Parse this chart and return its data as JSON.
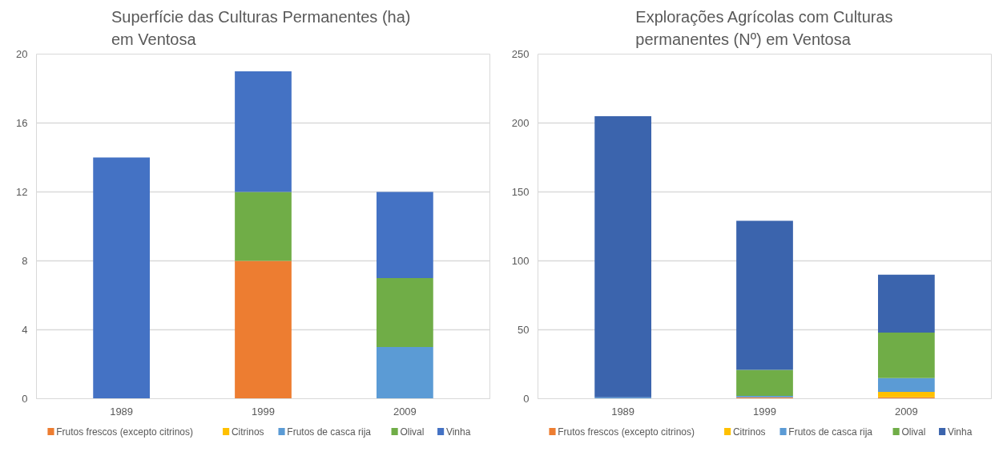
{
  "chart_data": [
    {
      "type": "bar",
      "title": "Superfície  das Culturas Permanentes (ha)\nem Ventosa",
      "categories": [
        "1989",
        "1999",
        "2009"
      ],
      "stacked": true,
      "ylim": [
        0,
        20
      ],
      "yticks": [
        0,
        4,
        8,
        12,
        16,
        20
      ],
      "grid": "y",
      "legend": "bottom",
      "series": [
        {
          "name": "Frutos frescos (excepto citrinos)",
          "color": "#ed7d31",
          "values": [
            0,
            8,
            0
          ]
        },
        {
          "name": "Citrinos",
          "color": "#ffc000",
          "values": [
            0,
            0,
            0
          ]
        },
        {
          "name": "Frutos de casca rija",
          "color": "#5b9bd5",
          "values": [
            0,
            0,
            3
          ]
        },
        {
          "name": "Olival",
          "color": "#70ad47",
          "values": [
            0,
            4,
            4
          ]
        },
        {
          "name": "Vinha",
          "color": "#4472c4",
          "values": [
            14,
            7,
            5
          ]
        }
      ]
    },
    {
      "type": "bar",
      "title": "Explorações Agrícolas com Culturas\npermanentes (Nº) em Ventosa",
      "categories": [
        "1989",
        "1999",
        "2009"
      ],
      "stacked": true,
      "ylim": [
        0,
        250
      ],
      "yticks": [
        0,
        50,
        100,
        150,
        200,
        250
      ],
      "grid": "y",
      "legend": "bottom",
      "series": [
        {
          "name": "Frutos frescos (excepto citrinos)",
          "color": "#ed7d31",
          "values": [
            0,
            1,
            1
          ]
        },
        {
          "name": "Citrinos",
          "color": "#ffc000",
          "values": [
            0,
            0,
            4
          ]
        },
        {
          "name": "Frutos de casca rija",
          "color": "#5b9bd5",
          "values": [
            1,
            1,
            10
          ]
        },
        {
          "name": "Olival",
          "color": "#70ad47",
          "values": [
            0,
            19,
            33
          ]
        },
        {
          "name": "Vinha",
          "color": "#3b64ad",
          "values": [
            204,
            108,
            42
          ]
        }
      ]
    }
  ]
}
